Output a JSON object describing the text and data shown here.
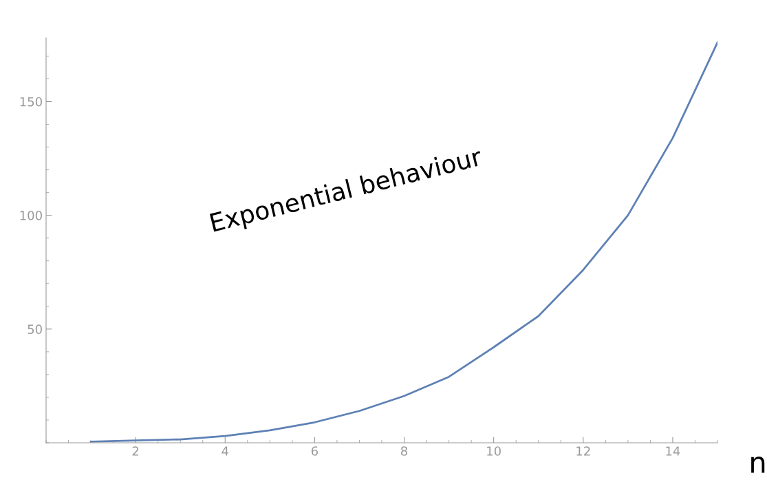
{
  "chart_data": {
    "type": "line",
    "xlabel": "n",
    "annotations": [
      "Exponential behaviour"
    ],
    "x": [
      1,
      2,
      3,
      4,
      5,
      6,
      7,
      8,
      9,
      10,
      11,
      12,
      13,
      14,
      15
    ],
    "series": [
      {
        "color": "#5e81b5",
        "values": [
          0.5,
          1,
          1.5,
          3,
          5.5,
          9,
          14,
          20.6,
          29,
          42,
          55.7,
          76,
          100,
          134,
          176
        ]
      }
    ],
    "xlim": [
      0,
      15
    ],
    "ylim": [
      0,
      178
    ],
    "xticks": [
      2,
      4,
      6,
      8,
      10,
      12,
      14
    ],
    "yticks": [
      50,
      100,
      150
    ],
    "grid": false,
    "legend": false,
    "marker": "none",
    "line_style": "solid"
  }
}
